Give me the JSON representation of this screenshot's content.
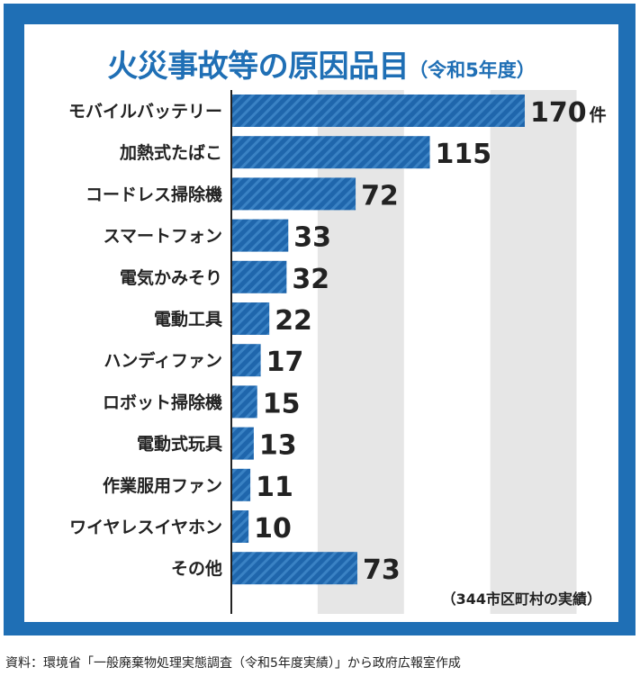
{
  "title": "火災事故等の原因品目",
  "title_suffix": "（令和5年度）",
  "note": "（344市区町村の実績）",
  "source": "資料：環境省「一般廃棄物処理実態調査（令和5年度実績）」から政府広報室作成",
  "colors": {
    "frame": "#1f6fb5",
    "bar": "#1f66ac",
    "bar_stripe": "#3a82c4",
    "gridband": "#e6e6e6",
    "axis": "#222222"
  },
  "chart_data": {
    "type": "bar",
    "orientation": "horizontal",
    "categories": [
      "モバイルバッテリー",
      "加熱式たばこ",
      "コードレス掃除機",
      "スマートフォン",
      "電気かみそり",
      "電動工具",
      "ハンディファン",
      "ロボット掃除機",
      "電動式玩具",
      "作業服用ファン",
      "ワイヤレスイヤホン",
      "その他"
    ],
    "values": [
      170,
      115,
      72,
      33,
      32,
      22,
      17,
      15,
      13,
      11,
      10,
      73
    ],
    "value_labels": [
      "170",
      "115",
      "72",
      "33",
      "32",
      "22",
      "17",
      "15",
      "13",
      "11",
      "10",
      "73"
    ],
    "first_value_unit": "件",
    "xlim": [
      0,
      200
    ],
    "title": "火災事故等の原因品目（令和5年度）",
    "xlabel": "",
    "ylabel": "",
    "grid": "alternating vertical bands"
  }
}
